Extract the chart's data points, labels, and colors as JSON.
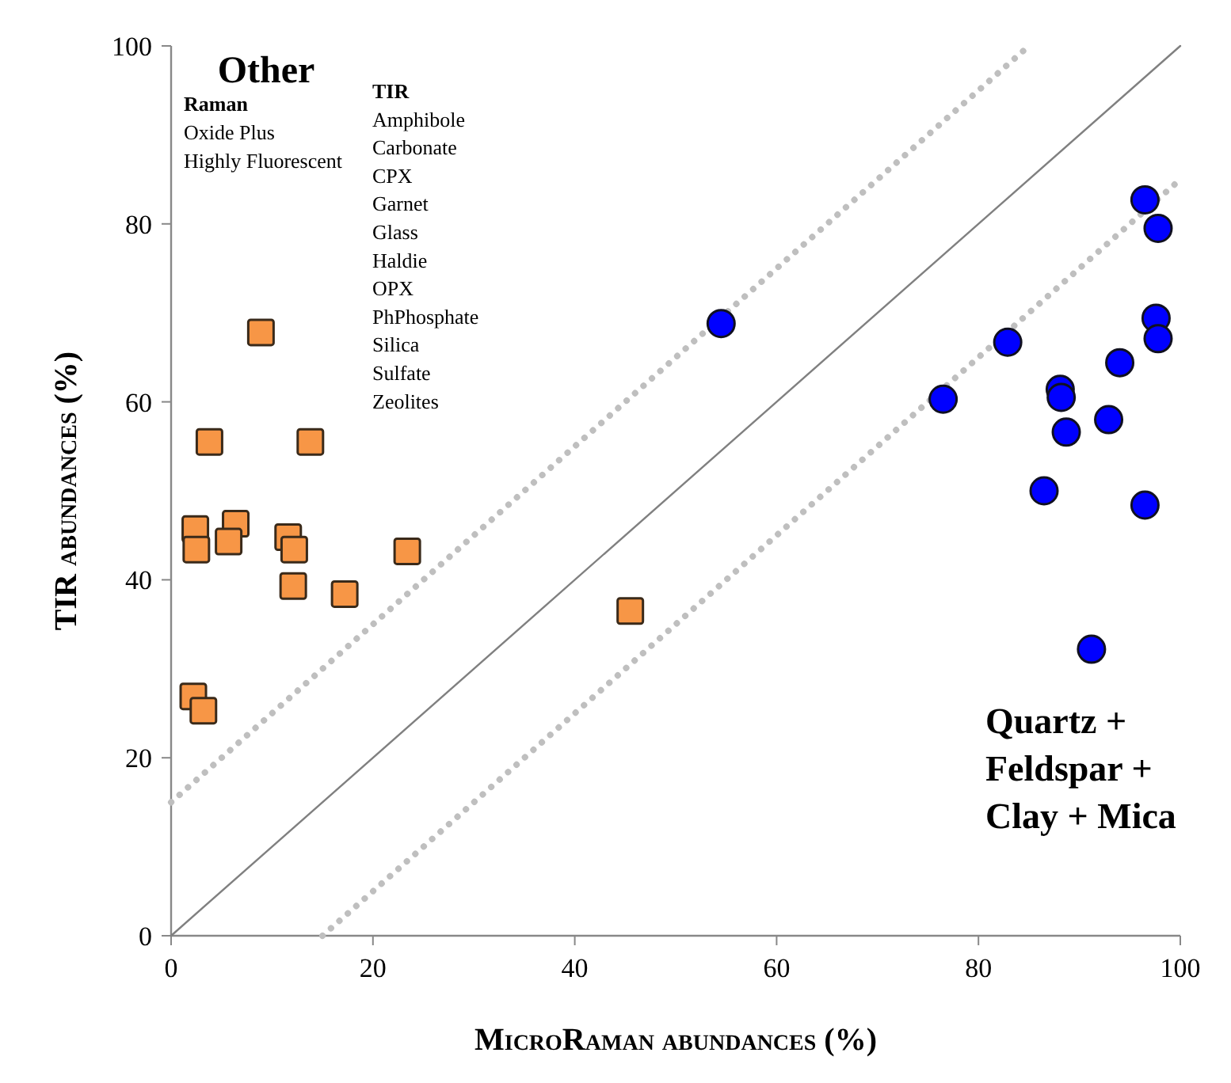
{
  "chart_data": {
    "type": "scatter",
    "xlabel": "MicroRaman abundances (%)",
    "ylabel": "TIR abundances (%)",
    "xlim": [
      0,
      100
    ],
    "ylim": [
      0,
      100
    ],
    "xticks": [
      0,
      20,
      40,
      60,
      80,
      100
    ],
    "yticks": [
      0,
      20,
      40,
      60,
      80,
      100
    ],
    "grid": false,
    "annotations": [
      "Other",
      "Raman\nOxide Plus\nHighly Fluorescent",
      "TIR\nAmphibole\nCarbonate\nCPX\nGarnet\nGlass\nHaldie\nOPX\nPhPhosphate\nSilica\nSulfate\nZeolites",
      "Quartz +\nFeldspar +\nClay + Mica"
    ],
    "series": [
      {
        "type": "line",
        "color": "#808080",
        "line_style": "solid",
        "x": [
          0,
          100
        ],
        "values": [
          0,
          100
        ]
      },
      {
        "type": "line",
        "color": "#bfbfbf",
        "line_style": "dotted",
        "x": [
          0,
          85
        ],
        "values": [
          15,
          100
        ]
      },
      {
        "type": "line",
        "color": "#bfbfbf",
        "line_style": "dotted",
        "x": [
          15,
          100
        ],
        "values": [
          0,
          85
        ]
      },
      {
        "color": "#f79646",
        "marker": "square",
        "x": [
          8.9,
          3.8,
          13.8,
          2.4,
          6.4,
          5.7,
          11.6,
          12.2,
          2.5,
          12.1,
          17.2,
          23.4,
          45.5,
          2.2,
          3.2
        ],
        "values": [
          67.8,
          55.5,
          55.5,
          45.7,
          46.3,
          44.3,
          44.8,
          43.4,
          43.4,
          39.3,
          38.4,
          43.2,
          36.5,
          26.9,
          25.3
        ]
      },
      {
        "color": "#0000ff",
        "marker": "circle",
        "x": [
          96.5,
          97.8,
          97.6,
          97.8,
          82.9,
          76.5,
          94.0,
          88.1,
          88.2,
          88.7,
          92.9,
          86.5,
          96.5,
          91.2,
          54.5
        ],
        "values": [
          82.7,
          79.5,
          69.4,
          67.1,
          66.7,
          60.3,
          64.4,
          61.4,
          60.5,
          56.6,
          58.0,
          50.0,
          48.4,
          32.2,
          68.8
        ]
      }
    ]
  }
}
